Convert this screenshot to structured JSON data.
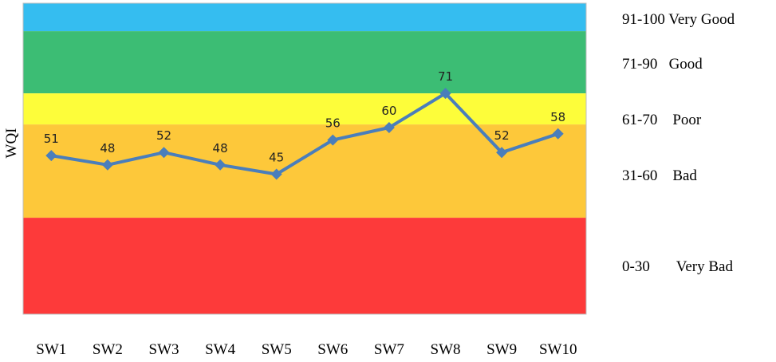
{
  "chart_data": {
    "type": "line",
    "ylabel": "WQI",
    "ylim": [
      0,
      100
    ],
    "categories": [
      "SW1",
      "SW2",
      "SW3",
      "SW4",
      "SW5",
      "SW6",
      "SW7",
      "SW8",
      "SW9",
      "SW10"
    ],
    "series": [
      {
        "values": [
          51,
          48,
          52,
          48,
          45,
          56,
          60,
          71,
          52,
          58
        ]
      }
    ],
    "data_labels": [
      "51",
      "48",
      "52",
      "48",
      "45",
      "56",
      "60",
      "71",
      "52",
      "58"
    ],
    "line_color": "#4a7ebb",
    "bands": [
      {
        "from": 91,
        "to": 100,
        "color": "#35bdf0"
      },
      {
        "from": 71,
        "to": 91,
        "color": "#3cbd74"
      },
      {
        "from": 61,
        "to": 71,
        "color": "#fdfd3a"
      },
      {
        "from": 31,
        "to": 61,
        "color": "#fdc83a"
      },
      {
        "from": 0,
        "to": 31,
        "color": "#fd3a3a"
      }
    ],
    "legend": [
      {
        "text": "91-100 Very Good"
      },
      {
        "text": "71-90   Good"
      },
      {
        "text": "61-70    Poor"
      },
      {
        "text": "31-60    Bad"
      },
      {
        "text": "0-30       Very Bad"
      }
    ]
  }
}
